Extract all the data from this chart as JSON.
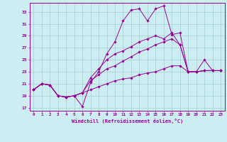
{
  "xlabel": "Windchill (Refroidissement éolien,°C)",
  "background_color": "#cceef2",
  "grid_color": "#aad4d8",
  "line_color": "#990099",
  "xlim": [
    -0.5,
    23.5
  ],
  "ylim": [
    16.5,
    34.5
  ],
  "yticks": [
    17,
    19,
    21,
    23,
    25,
    27,
    29,
    31,
    33
  ],
  "xticks": [
    0,
    1,
    2,
    3,
    4,
    5,
    6,
    7,
    8,
    9,
    10,
    11,
    12,
    13,
    14,
    15,
    16,
    17,
    18,
    19,
    20,
    21,
    22,
    23
  ],
  "series": [
    {
      "x": [
        0,
        1,
        2,
        3,
        4,
        5,
        6,
        7,
        8,
        9,
        10,
        11,
        12,
        13,
        14,
        15,
        16,
        17,
        18,
        19,
        20,
        21,
        22,
        23
      ],
      "y": [
        20.0,
        21.0,
        20.8,
        19.0,
        18.8,
        19.0,
        17.2,
        21.2,
        23.0,
        26.0,
        28.0,
        31.5,
        33.3,
        33.5,
        31.5,
        33.5,
        34.0,
        29.2,
        29.5,
        23.0,
        23.0,
        25.0,
        23.2,
        23.2
      ]
    },
    {
      "x": [
        0,
        1,
        2,
        3,
        4,
        5,
        6,
        7,
        8,
        9,
        10,
        11,
        12,
        13,
        14,
        15,
        16,
        17,
        18,
        19,
        20,
        21,
        22,
        23
      ],
      "y": [
        20.0,
        21.0,
        20.8,
        19.0,
        18.8,
        19.0,
        19.5,
        22.0,
        23.5,
        25.0,
        26.0,
        26.5,
        27.2,
        28.0,
        28.5,
        29.0,
        28.5,
        29.5,
        27.5,
        23.0,
        23.0,
        23.2,
        23.2,
        23.2
      ]
    },
    {
      "x": [
        0,
        1,
        2,
        3,
        4,
        5,
        6,
        7,
        8,
        9,
        10,
        11,
        12,
        13,
        14,
        15,
        16,
        17,
        18,
        19,
        20,
        21,
        22,
        23
      ],
      "y": [
        20.0,
        21.0,
        20.8,
        19.0,
        18.8,
        19.0,
        19.5,
        21.5,
        22.5,
        23.5,
        24.0,
        24.8,
        25.5,
        26.3,
        26.8,
        27.5,
        28.0,
        28.5,
        27.5,
        23.0,
        23.0,
        23.2,
        23.2,
        23.2
      ]
    },
    {
      "x": [
        0,
        1,
        2,
        3,
        4,
        5,
        6,
        7,
        8,
        9,
        10,
        11,
        12,
        13,
        14,
        15,
        16,
        17,
        18,
        19,
        20,
        21,
        22,
        23
      ],
      "y": [
        20.0,
        21.0,
        20.8,
        19.0,
        18.8,
        19.0,
        19.5,
        20.0,
        20.5,
        21.0,
        21.5,
        21.8,
        22.0,
        22.5,
        22.8,
        23.0,
        23.5,
        24.0,
        24.0,
        23.0,
        23.0,
        23.2,
        23.2,
        23.2
      ]
    }
  ]
}
